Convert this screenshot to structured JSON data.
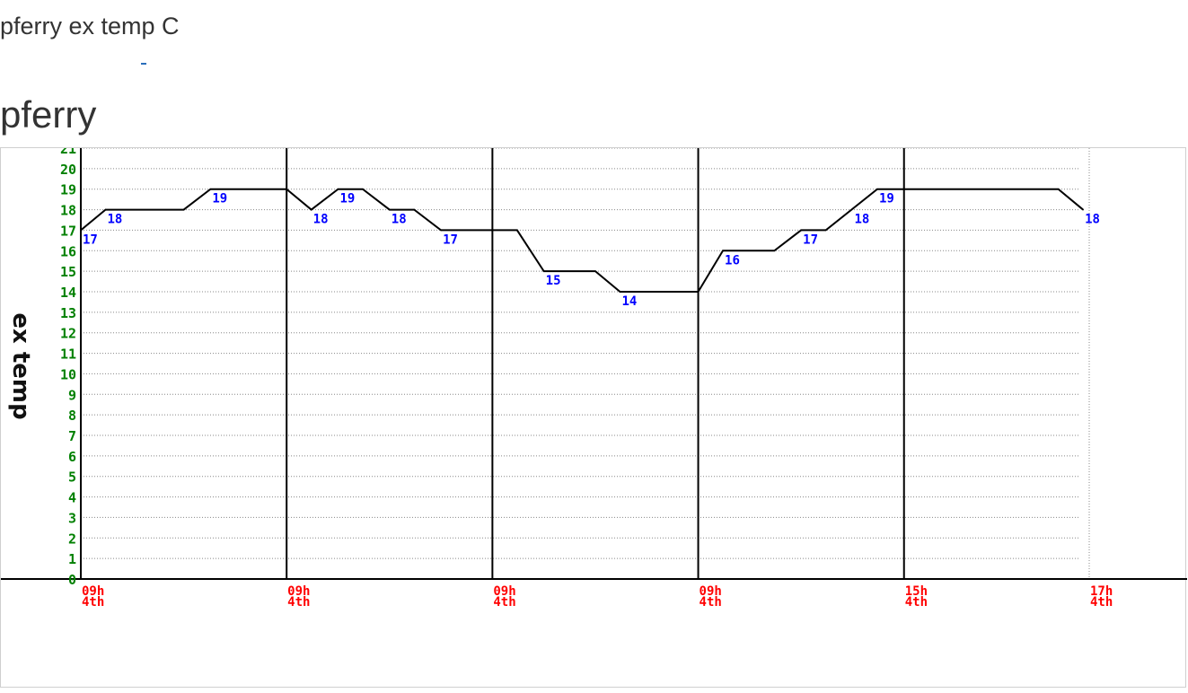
{
  "page": {
    "title": "pferry ex temp C",
    "heading": "pferry"
  },
  "colors": {
    "y_tick": "#008000",
    "x_tick": "#ff0000",
    "data_label": "#0000ff",
    "line": "#000000",
    "grid": "#888888"
  },
  "chart_data": {
    "type": "line",
    "title": "pferry",
    "xlabel": "",
    "ylabel": "ex temp",
    "ylim": [
      0,
      21
    ],
    "yticks": [
      0,
      1,
      2,
      3,
      4,
      5,
      6,
      7,
      8,
      9,
      10,
      11,
      12,
      13,
      14,
      15,
      16,
      17,
      18,
      19,
      20,
      21
    ],
    "xlim": [
      0,
      49
    ],
    "xticks": [
      {
        "x": 0,
        "h": "09h",
        "d": "4th"
      },
      {
        "x": 10,
        "h": "09h",
        "d": "4th"
      },
      {
        "x": 20,
        "h": "09h",
        "d": "4th"
      },
      {
        "x": 30,
        "h": "09h",
        "d": "4th"
      },
      {
        "x": 40,
        "h": "15h",
        "d": "4th"
      },
      {
        "x": 49,
        "h": "17h",
        "d": "4th"
      }
    ],
    "grid": true,
    "series": [
      {
        "points": [
          [
            0,
            17
          ],
          [
            1.2,
            18
          ],
          [
            5,
            18
          ],
          [
            6.3,
            19
          ],
          [
            10,
            19
          ],
          [
            11.2,
            18
          ],
          [
            12.5,
            19
          ],
          [
            13.7,
            19
          ],
          [
            15,
            18
          ],
          [
            16.2,
            18
          ],
          [
            17.5,
            17
          ],
          [
            21.2,
            17
          ],
          [
            22.5,
            15
          ],
          [
            25,
            15
          ],
          [
            26.2,
            14
          ],
          [
            30,
            14
          ],
          [
            31.2,
            16
          ],
          [
            33.7,
            16
          ],
          [
            35,
            17
          ],
          [
            36.2,
            17
          ],
          [
            38.7,
            19
          ],
          [
            47.5,
            19
          ],
          [
            48.7,
            18
          ]
        ]
      }
    ],
    "data_labels": [
      {
        "x": 0,
        "y": 17,
        "text": "17"
      },
      {
        "x": 1.2,
        "y": 18,
        "text": "18"
      },
      {
        "x": 6.3,
        "y": 19,
        "text": "19"
      },
      {
        "x": 11.2,
        "y": 18,
        "text": "18"
      },
      {
        "x": 12.5,
        "y": 19,
        "text": "19"
      },
      {
        "x": 15,
        "y": 18,
        "text": "18"
      },
      {
        "x": 17.5,
        "y": 17,
        "text": "17"
      },
      {
        "x": 22.5,
        "y": 15,
        "text": "15"
      },
      {
        "x": 26.2,
        "y": 14,
        "text": "14"
      },
      {
        "x": 31.2,
        "y": 16,
        "text": "16"
      },
      {
        "x": 35,
        "y": 17,
        "text": "17"
      },
      {
        "x": 37.5,
        "y": 18,
        "text": "18"
      },
      {
        "x": 38.7,
        "y": 19,
        "text": "19"
      },
      {
        "x": 48.7,
        "y": 18,
        "text": "18"
      }
    ]
  }
}
